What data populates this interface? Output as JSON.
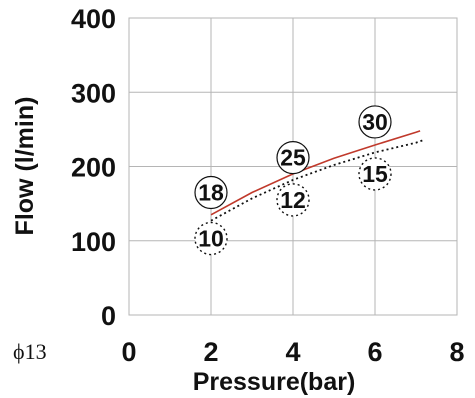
{
  "chart_data": {
    "type": "line",
    "title": "",
    "xlabel": "Pressure(bar)",
    "ylabel": "Flow (l/min)",
    "xlim": [
      0,
      8
    ],
    "ylim": [
      0,
      400
    ],
    "xticks": [
      "0",
      "2",
      "4",
      "6",
      "8"
    ],
    "yticks": [
      "0",
      "100",
      "200",
      "300",
      "400"
    ],
    "grid": true,
    "note": "ϕ13",
    "series": [
      {
        "style": "solid",
        "color": "#c0392b",
        "x": [
          2.0,
          3.0,
          4.0,
          5.0,
          6.0,
          7.0,
          7.1
        ],
        "y": [
          135,
          165,
          190,
          211,
          229,
          246,
          248
        ]
      },
      {
        "style": "dotted",
        "color": "#111111",
        "x": [
          2.0,
          3.0,
          4.0,
          5.0,
          6.0,
          7.0,
          7.2
        ],
        "y": [
          127,
          157,
          182,
          202,
          219,
          232,
          236
        ]
      }
    ],
    "point_labels": [
      {
        "x": 2,
        "y": 165,
        "text": "18",
        "border": "solid"
      },
      {
        "x": 2,
        "y": 103,
        "text": "10",
        "border": "dashed"
      },
      {
        "x": 4,
        "y": 212,
        "text": "25",
        "border": "solid"
      },
      {
        "x": 4,
        "y": 155,
        "text": "12",
        "border": "dashed"
      },
      {
        "x": 6,
        "y": 260,
        "text": "30",
        "border": "solid"
      },
      {
        "x": 6,
        "y": 190,
        "text": "15",
        "border": "dashed"
      }
    ]
  }
}
